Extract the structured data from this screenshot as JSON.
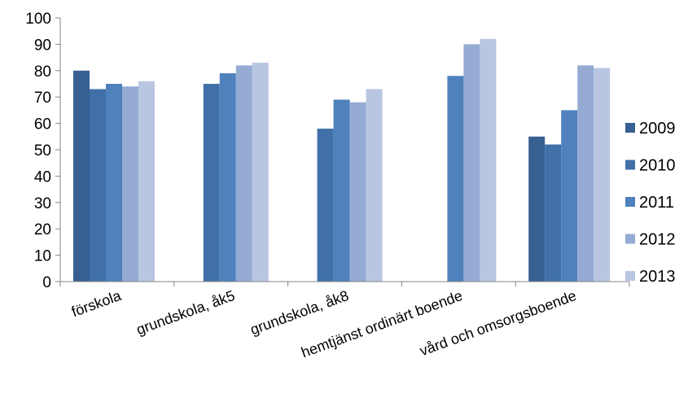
{
  "chart_data": {
    "type": "bar",
    "categories": [
      "förskola",
      "grundskola, åk5",
      "grundskola, åk8",
      "hemtjänst ordinärt boende",
      "vård och omsorgsboende"
    ],
    "series": [
      {
        "name": "2009",
        "values": [
          80,
          null,
          null,
          null,
          55
        ],
        "color": "#375f91"
      },
      {
        "name": "2010",
        "values": [
          73,
          75,
          58,
          null,
          52
        ],
        "color": "#4170a8"
      },
      {
        "name": "2011",
        "values": [
          75,
          79,
          69,
          78,
          65
        ],
        "color": "#4f81bd"
      },
      {
        "name": "2012",
        "values": [
          74,
          82,
          68,
          90,
          82
        ],
        "color": "#95abd3"
      },
      {
        "name": "2013",
        "values": [
          76,
          83,
          73,
          92,
          81
        ],
        "color": "#b9c6e2"
      }
    ],
    "ylim": [
      0,
      100
    ],
    "yticks": [
      "0",
      "10",
      "20",
      "30",
      "40",
      "50",
      "60",
      "70",
      "80",
      "90",
      "100"
    ],
    "grid": false,
    "legend_position": "right"
  }
}
